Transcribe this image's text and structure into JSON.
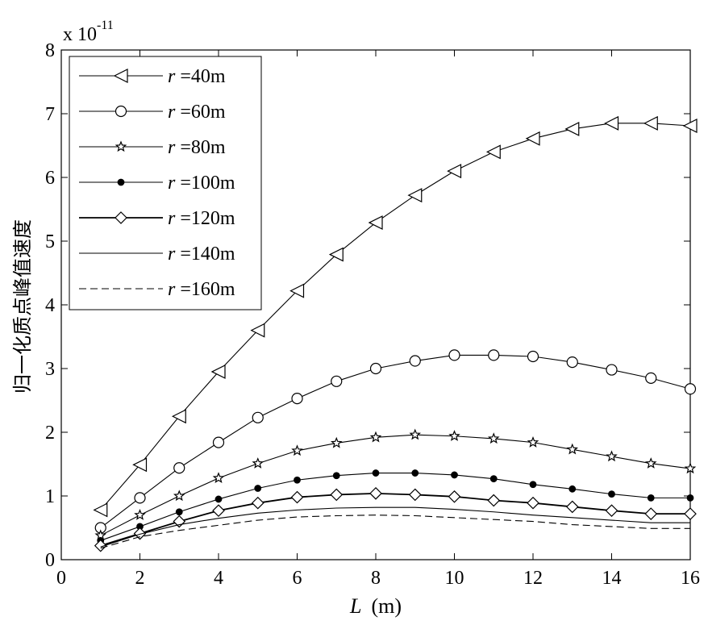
{
  "chart_data": {
    "type": "line",
    "title": "",
    "xlabel_var": "L",
    "xlabel_unit": "(m)",
    "ylabel": "归一化质点峰值速度",
    "y_multiplier_base": "x 10",
    "y_multiplier_exp": "-11",
    "xlim": [
      0,
      16
    ],
    "ylim": [
      0,
      8
    ],
    "x_ticks": [
      0,
      2,
      4,
      6,
      8,
      10,
      12,
      14,
      16
    ],
    "y_ticks": [
      0,
      1,
      2,
      3,
      4,
      5,
      6,
      7,
      8
    ],
    "legend_position": "top-left",
    "grid": false,
    "x": [
      1,
      2,
      3,
      4,
      5,
      6,
      7,
      8,
      9,
      10,
      11,
      12,
      13,
      14,
      15,
      16
    ],
    "series": [
      {
        "name_var": "r",
        "name_rest": " =40m",
        "marker": "triangle-left",
        "line": "solid",
        "values": [
          0.78,
          1.49,
          2.25,
          2.95,
          3.6,
          4.22,
          4.79,
          5.29,
          5.72,
          6.1,
          6.4,
          6.61,
          6.76,
          6.85,
          6.85,
          6.81
        ]
      },
      {
        "name_var": "r",
        "name_rest": " =60m",
        "marker": "circle",
        "line": "solid",
        "values": [
          0.5,
          0.97,
          1.44,
          1.84,
          2.23,
          2.53,
          2.8,
          3.0,
          3.12,
          3.21,
          3.21,
          3.19,
          3.1,
          2.98,
          2.85,
          2.68
        ]
      },
      {
        "name_var": "r",
        "name_rest": " =80m",
        "marker": "star",
        "line": "solid",
        "values": [
          0.38,
          0.7,
          1.0,
          1.28,
          1.51,
          1.71,
          1.83,
          1.92,
          1.96,
          1.94,
          1.9,
          1.84,
          1.73,
          1.62,
          1.51,
          1.43
        ]
      },
      {
        "name_var": "r",
        "name_rest": " =100m",
        "marker": "dot",
        "line": "solid",
        "values": [
          0.3,
          0.52,
          0.75,
          0.95,
          1.12,
          1.25,
          1.32,
          1.36,
          1.36,
          1.33,
          1.27,
          1.18,
          1.11,
          1.03,
          0.97,
          0.97
        ]
      },
      {
        "name_var": "r",
        "name_rest": " =120m",
        "marker": "diamond",
        "line": "solid-thick",
        "values": [
          0.22,
          0.41,
          0.6,
          0.77,
          0.89,
          0.98,
          1.02,
          1.04,
          1.02,
          0.99,
          0.93,
          0.89,
          0.83,
          0.77,
          0.72,
          0.72
        ]
      },
      {
        "name_var": "r",
        "name_rest": " =140m",
        "marker": "none",
        "line": "solid",
        "values": [
          0.2,
          0.4,
          0.55,
          0.65,
          0.73,
          0.78,
          0.81,
          0.82,
          0.82,
          0.79,
          0.75,
          0.7,
          0.66,
          0.62,
          0.58,
          0.58
        ]
      },
      {
        "name_var": "r",
        "name_rest": " =160m",
        "marker": "none",
        "line": "dashed",
        "values": [
          0.18,
          0.36,
          0.46,
          0.54,
          0.62,
          0.67,
          0.69,
          0.7,
          0.69,
          0.66,
          0.63,
          0.6,
          0.55,
          0.52,
          0.49,
          0.49
        ]
      }
    ]
  }
}
